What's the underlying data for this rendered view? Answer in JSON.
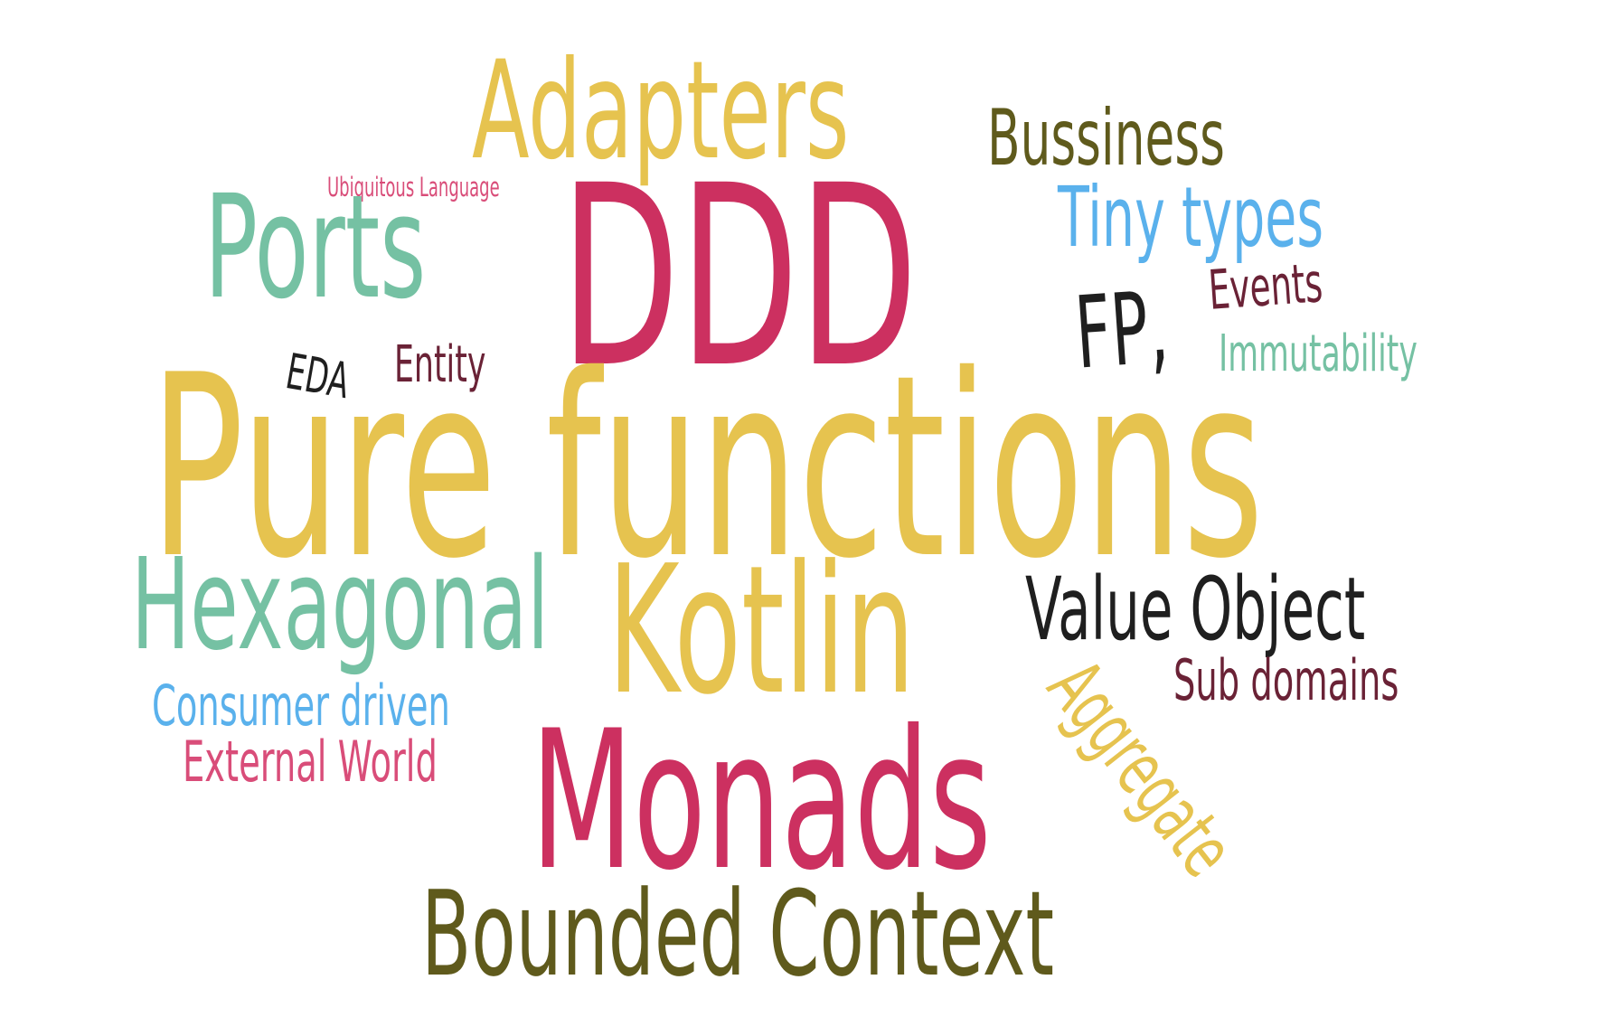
{
  "cloud": {
    "colors": {
      "yellow": "#e6c34f",
      "olive": "#5f5a1c",
      "pink": "#d94d79",
      "crimson": "#cc3060",
      "teal": "#75c1a3",
      "blue": "#5ab1ec",
      "maroon": "#6a2236",
      "black": "#1f1f1f"
    },
    "words": {
      "adapters": "Adapters",
      "bussiness": "Bussiness",
      "ubiquitous": "Ubiquitous Language",
      "ddd": "DDD",
      "ports": "Ports",
      "tinytypes": "Tiny types",
      "events": "Events",
      "fp": "FP,",
      "immutability": "Immutability",
      "eda": "EDA",
      "entity": "Entity",
      "pure": "Pure functions",
      "hexagonal": "Hexagonal",
      "kotlin": "Kotlin",
      "valueobject": "Value Object",
      "aggregate": "Aggregate",
      "subdomains": "Sub domains",
      "consumer": "Consumer driven",
      "external": "External World",
      "monads": "Monads",
      "bounded": "Bounded Context"
    }
  }
}
